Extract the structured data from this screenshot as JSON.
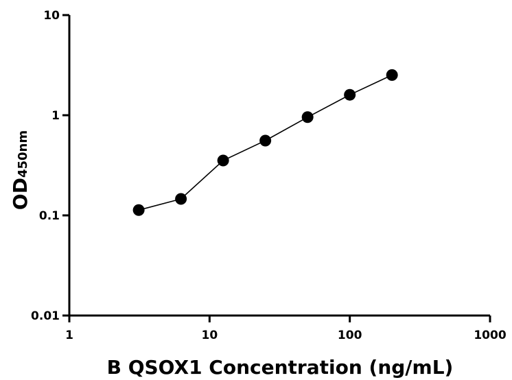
{
  "chart_data": {
    "type": "scatter",
    "xlabel": "B QSOX1 Concentration (ng/mL)",
    "ylabel": {
      "main": "OD",
      "sub": "450nm"
    },
    "x_scale": "log",
    "y_scale": "log",
    "xlim": [
      1,
      1000
    ],
    "ylim": [
      0.01,
      10
    ],
    "x_ticks": [
      {
        "value": 1,
        "label": "1"
      },
      {
        "value": 10,
        "label": "10"
      },
      {
        "value": 100,
        "label": "100"
      },
      {
        "value": 1000,
        "label": "1000"
      }
    ],
    "y_ticks": [
      {
        "value": 0.01,
        "label": "0.01"
      },
      {
        "value": 0.1,
        "label": "0.1"
      },
      {
        "value": 1,
        "label": "1"
      },
      {
        "value": 10,
        "label": "10"
      }
    ],
    "grid": false,
    "legend": "none",
    "series": [
      {
        "marker": "circle",
        "fit_line": true,
        "points": [
          {
            "x": 3.125,
            "y": 0.113
          },
          {
            "x": 6.25,
            "y": 0.146
          },
          {
            "x": 12.5,
            "y": 0.353
          },
          {
            "x": 25,
            "y": 0.558
          },
          {
            "x": 50,
            "y": 0.957
          },
          {
            "x": 100,
            "y": 1.6
          },
          {
            "x": 200,
            "y": 2.52
          }
        ]
      }
    ]
  }
}
